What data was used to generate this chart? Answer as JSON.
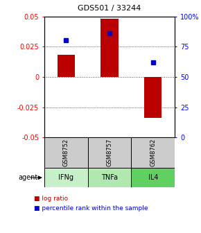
{
  "title": "GDS501 / 33244",
  "samples": [
    "GSM8752",
    "GSM8757",
    "GSM8762"
  ],
  "agents": [
    "IFNg",
    "TNFa",
    "IL4"
  ],
  "log_ratios": [
    0.018,
    0.048,
    -0.034
  ],
  "percentile_ranks": [
    0.8,
    0.86,
    0.62
  ],
  "ylim_left": [
    -0.05,
    0.05
  ],
  "yticks_left": [
    -0.05,
    -0.025,
    0,
    0.025,
    0.05
  ],
  "ytick_labels_left": [
    "-0.05",
    "-0.025",
    "0",
    "0.025",
    "0.05"
  ],
  "yticks_right": [
    0.0,
    0.25,
    0.5,
    0.75,
    1.0
  ],
  "ytick_labels_right": [
    "0",
    "25",
    "50",
    "75",
    "100%"
  ],
  "bar_color": "#bb0000",
  "dot_color": "#0000cc",
  "agent_colors": [
    "#c8f0c8",
    "#b0e8b0",
    "#60d060"
  ],
  "sample_bg": "#cccccc",
  "bar_width": 0.4,
  "title_fontsize": 8,
  "tick_fontsize": 7,
  "label_fontsize": 7,
  "legend_fontsize": 6.5
}
